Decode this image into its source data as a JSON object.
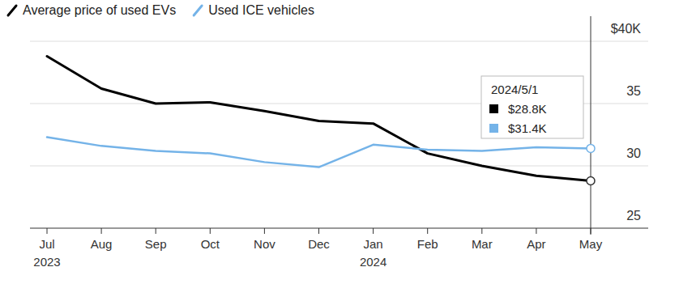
{
  "chart_data": {
    "type": "line",
    "categories": [
      "Jul 2023",
      "Aug",
      "Sep",
      "Oct",
      "Nov",
      "Dec",
      "Jan 2024",
      "Feb",
      "Mar",
      "Apr",
      "May"
    ],
    "series": [
      {
        "name": "Average price of used EVs",
        "color": "#000000",
        "values": [
          38.8,
          36.2,
          35.0,
          35.1,
          34.4,
          33.6,
          33.4,
          31.0,
          30.0,
          29.2,
          28.8
        ]
      },
      {
        "name": "Used ICE vehicles",
        "color": "#74b3e8",
        "values": [
          32.3,
          31.6,
          31.2,
          31.0,
          30.3,
          29.9,
          31.7,
          31.3,
          31.2,
          31.5,
          31.4
        ]
      }
    ],
    "ylim": [
      25,
      40
    ],
    "yticks": [
      25,
      30,
      35,
      {
        "value": 40,
        "label": "$40K"
      }
    ],
    "grid": true,
    "legend": "top-left",
    "tooltip": {
      "title": "2024/5/1",
      "category": "May",
      "labels": [
        "$28.8K",
        "$31.4K"
      ]
    }
  }
}
